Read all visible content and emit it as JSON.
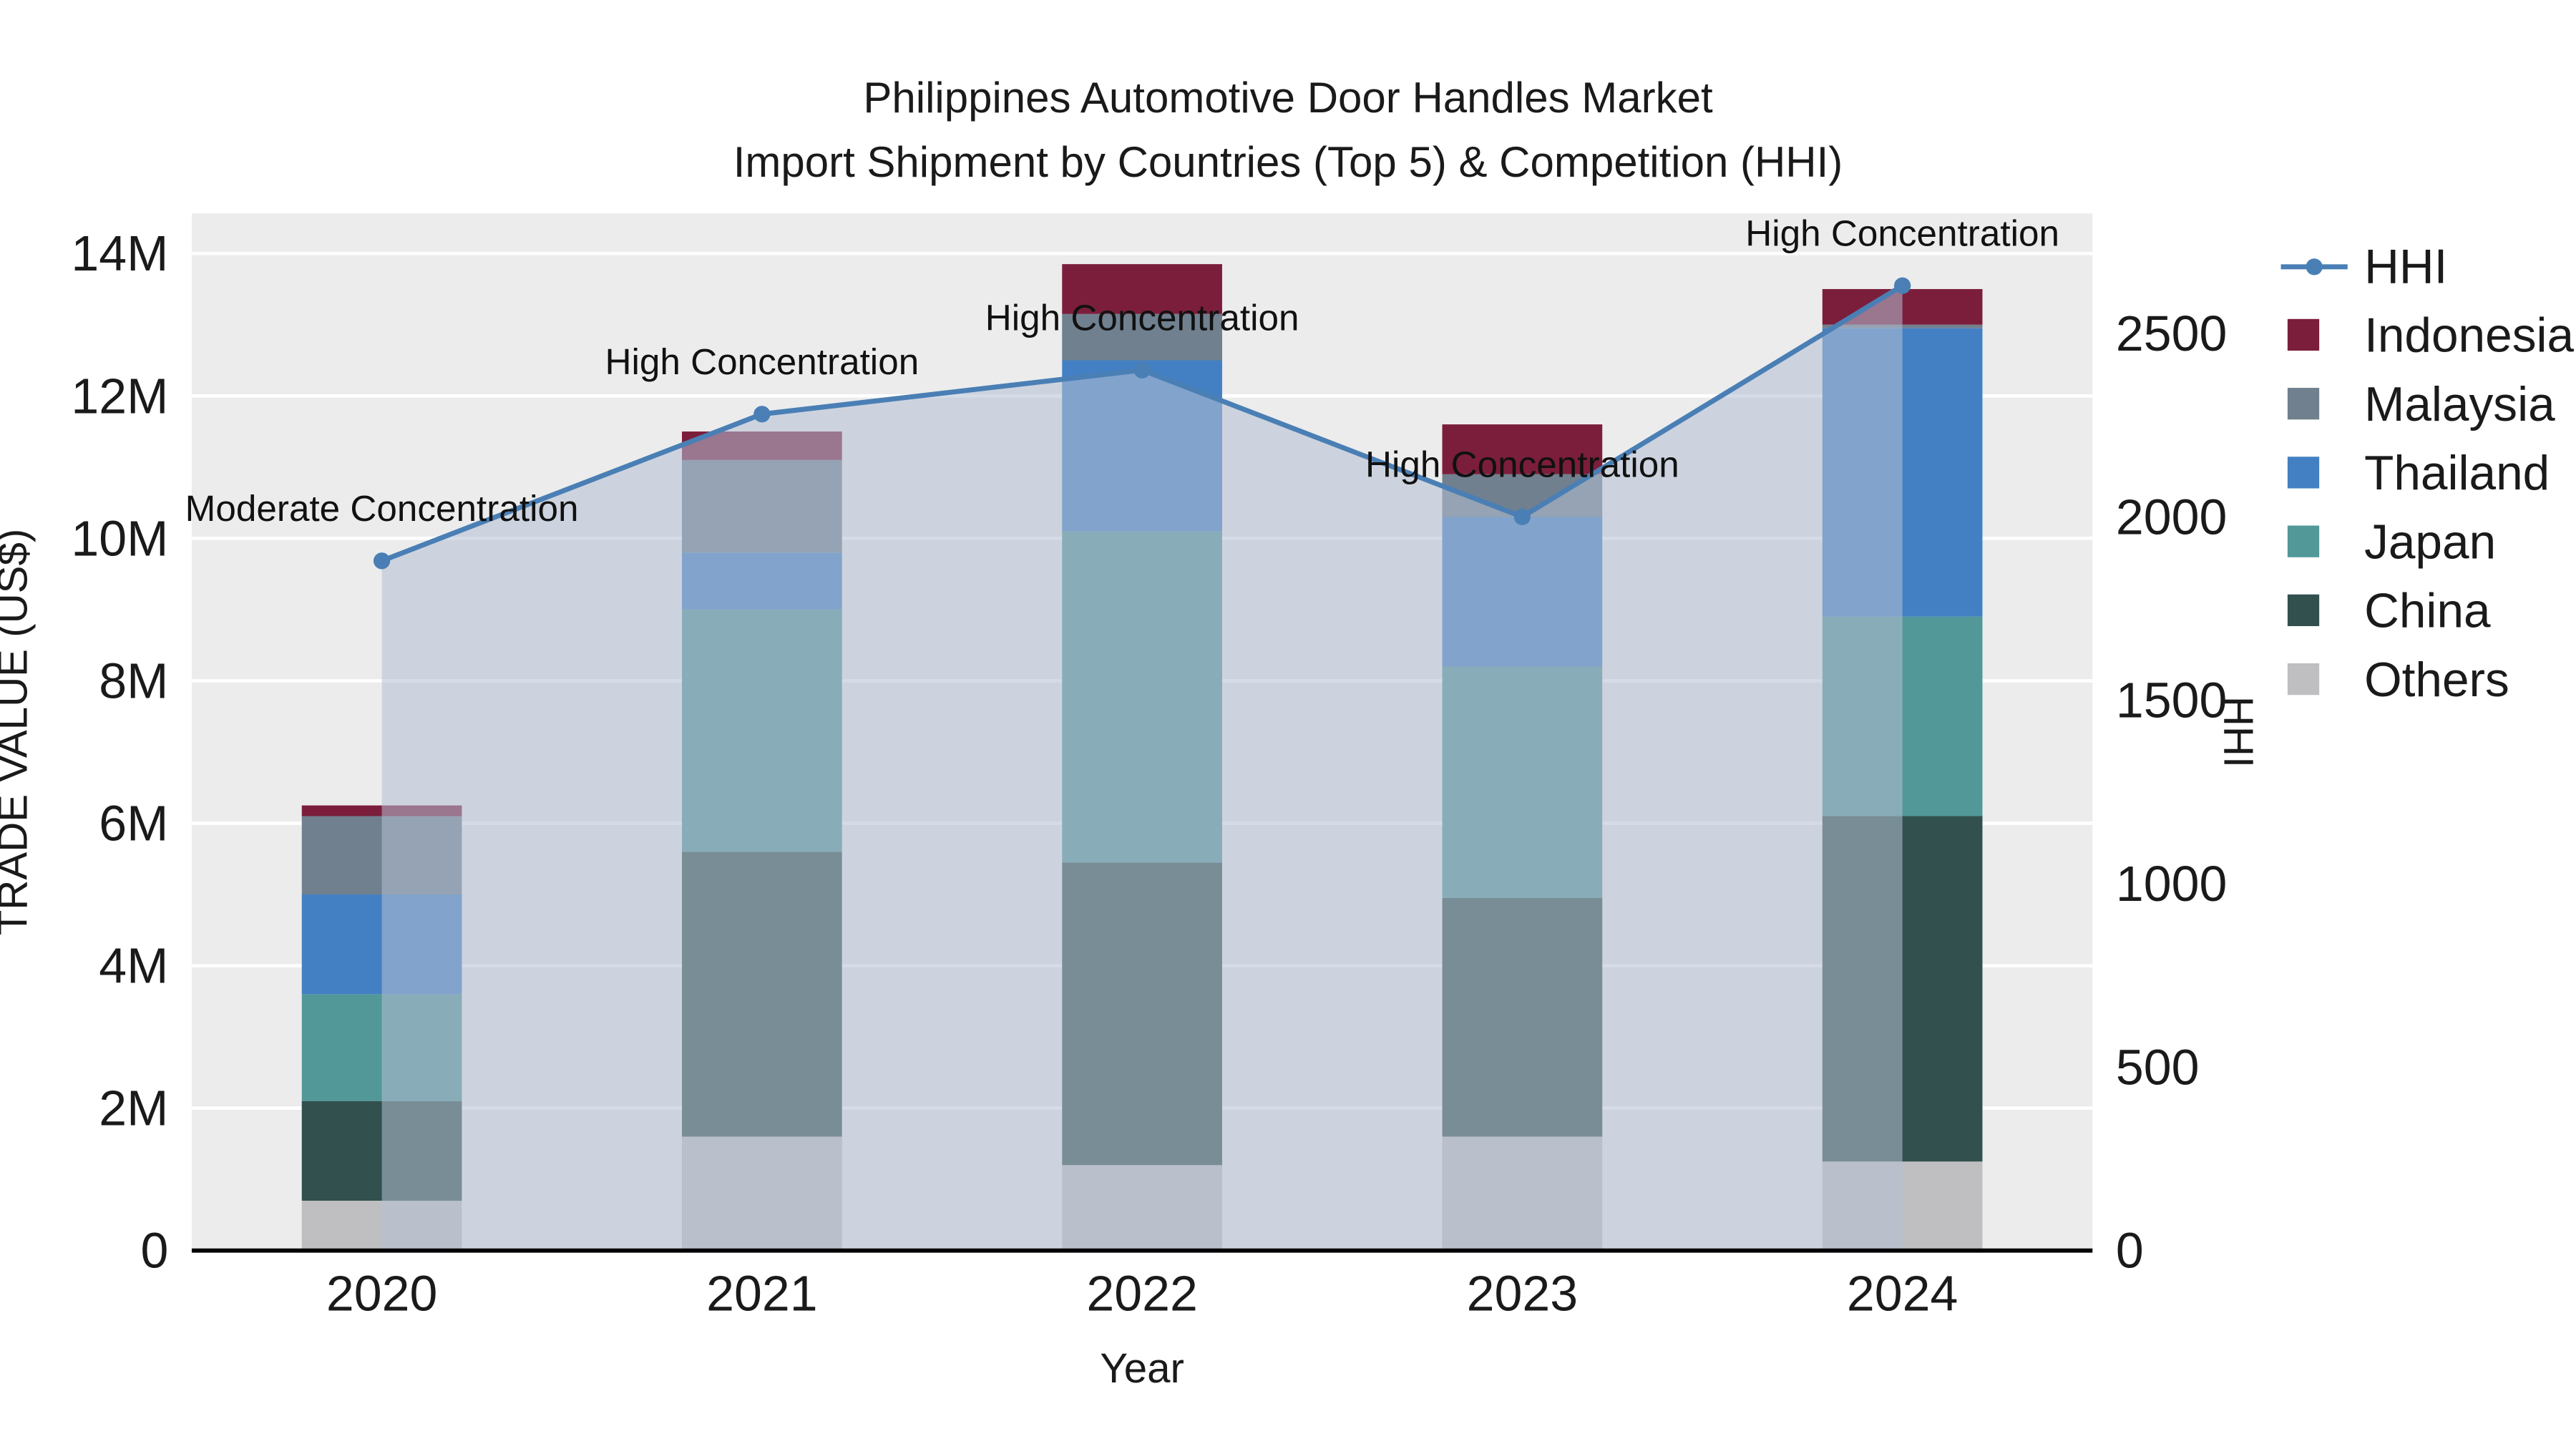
{
  "title": {
    "line1": "Philippines Automotive Door Handles Market",
    "line2": "Import Shipment by Countries (Top 5) & Competition (HHI)"
  },
  "chart_data": {
    "type": "bar",
    "subtype": "stacked-bar-with-hhi-line",
    "categories": [
      "2020",
      "2021",
      "2022",
      "2023",
      "2024"
    ],
    "xlabel": "Year",
    "y_left": {
      "label": "TRADE VALUE (US$)",
      "units": "millions USD",
      "tick_values": [
        0,
        2,
        4,
        6,
        8,
        10,
        12,
        14
      ],
      "tick_labels": [
        "0",
        "2M",
        "4M",
        "6M",
        "8M",
        "10M",
        "12M",
        "14M"
      ],
      "max": 14.56
    },
    "y_right": {
      "label": "HHI",
      "tick_values": [
        0,
        500,
        1000,
        1500,
        2000,
        2500
      ],
      "tick_labels": [
        "0",
        "500",
        "1000",
        "1500",
        "2000",
        "2500"
      ],
      "max": 2827
    },
    "bar_series": [
      {
        "name": "Others",
        "color": "#bfbfc1",
        "values_musd": [
          0.7,
          1.6,
          1.2,
          1.6,
          1.25
        ]
      },
      {
        "name": "China",
        "color": "#31504e",
        "values_musd": [
          1.4,
          4.0,
          4.25,
          3.35,
          4.85
        ]
      },
      {
        "name": "Japan",
        "color": "#529899",
        "values_musd": [
          1.5,
          3.4,
          4.65,
          3.25,
          2.8
        ]
      },
      {
        "name": "Thailand",
        "color": "#4380c3",
        "values_musd": [
          1.4,
          0.8,
          2.4,
          2.1,
          4.05
        ]
      },
      {
        "name": "Malaysia",
        "color": "#70808f",
        "values_musd": [
          1.1,
          1.3,
          0.65,
          0.6,
          0.05
        ]
      },
      {
        "name": "Indonesia",
        "color": "#7b1e3c",
        "values_musd": [
          0.15,
          0.4,
          0.7,
          0.7,
          0.5
        ]
      }
    ],
    "bar_totals_musd": [
      6.25,
      11.5,
      13.85,
      11.6,
      13.5
    ],
    "line_series": {
      "name": "HHI",
      "color": "#4a7fb5",
      "values": [
        1880,
        2280,
        2400,
        2000,
        2630
      ],
      "area_fill": "#b4c0d4",
      "area_opacity": 0.55
    },
    "annotations": [
      "Moderate Concentration",
      "High Concentration",
      "High Concentration",
      "High Concentration",
      "High Concentration"
    ],
    "legend": [
      {
        "label": "HHI",
        "marker": "line",
        "color": "#4a7fb5"
      },
      {
        "label": "Indonesia",
        "marker": "square",
        "color": "#7b1e3c"
      },
      {
        "label": "Malaysia",
        "marker": "square",
        "color": "#70808f"
      },
      {
        "label": "Thailand",
        "marker": "square",
        "color": "#4380c3"
      },
      {
        "label": "Japan",
        "marker": "square",
        "color": "#529899"
      },
      {
        "label": "China",
        "marker": "square",
        "color": "#31504e"
      },
      {
        "label": "Others",
        "marker": "square",
        "color": "#bfbfc1"
      }
    ],
    "layout": {
      "plot_bg": "#ececec",
      "grid_color": "#ffffff",
      "axis_color": "#000000",
      "text_color": "#1a1a1a",
      "legend_position": "right",
      "grid": true
    }
  }
}
